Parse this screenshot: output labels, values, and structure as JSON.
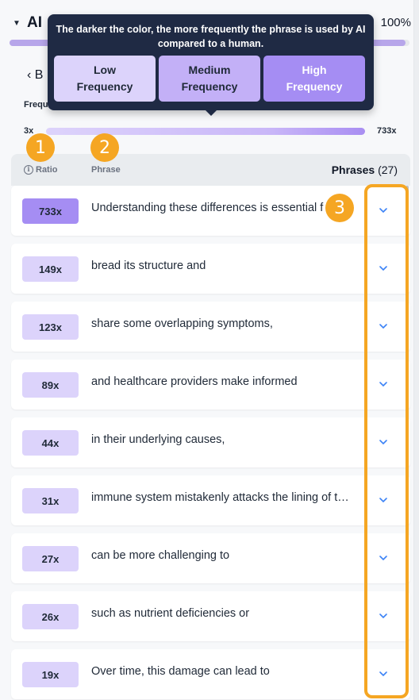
{
  "header": {
    "title": "AI",
    "percent": "100%",
    "progress": 0.99
  },
  "back_row": {
    "label": "‹ B"
  },
  "frequency_label": "Frequency",
  "tooltip": {
    "text": "The darker the color, the more frequently the phrase is used by AI compared to a human.",
    "legend": [
      {
        "label": "Low\nFrequency",
        "color": "#dcd3fb"
      },
      {
        "label": "Medium\nFrequency",
        "color": "#c3b0f7"
      },
      {
        "label": "High\nFrequency",
        "color": "#a58df3"
      }
    ]
  },
  "range": {
    "min": "3x",
    "max": "733x"
  },
  "table": {
    "ratio_header": "Ratio",
    "phrase_header": "Phrase",
    "count_label": "Phrases",
    "count_value": "(27)"
  },
  "phrases": [
    {
      "ratio": "733x",
      "text": "Understanding these differences is essential f",
      "color": "#a58df3"
    },
    {
      "ratio": "149x",
      "text": "bread its structure and",
      "color": "#dcd3fb"
    },
    {
      "ratio": "123x",
      "text": "share some overlapping symptoms,",
      "color": "#dcd3fb"
    },
    {
      "ratio": "89x",
      "text": "and healthcare providers make informed",
      "color": "#dcd3fb"
    },
    {
      "ratio": "44x",
      "text": "in their underlying causes,",
      "color": "#dcd3fb"
    },
    {
      "ratio": "31x",
      "text": "immune system mistakenly attacks the lining of t…",
      "color": "#dcd3fb"
    },
    {
      "ratio": "27x",
      "text": "can be more challenging to",
      "color": "#dcd3fb"
    },
    {
      "ratio": "26x",
      "text": "such as nutrient deficiencies or",
      "color": "#dcd3fb"
    },
    {
      "ratio": "19x",
      "text": "Over time, this damage can lead to",
      "color": "#dcd3fb"
    }
  ],
  "annotations": {
    "marker_1": "1",
    "marker_2": "2",
    "marker_3": "3",
    "marker_color": "#f5a623"
  },
  "icons": {
    "expand": "chevron-down-icon",
    "info": "info-icon",
    "back": "chevron-left-icon",
    "collapse": "caret-down-icon"
  }
}
